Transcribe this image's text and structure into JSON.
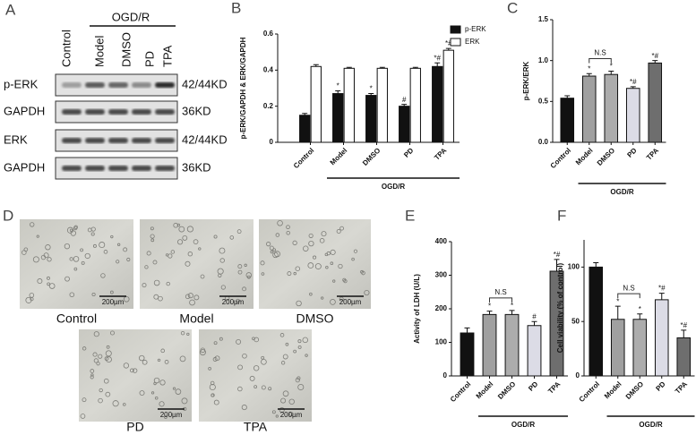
{
  "blot": {
    "panel": "A",
    "group_label": "OGD/R",
    "lanes": [
      "Control",
      "Model",
      "DMSO",
      "PD",
      "TPA"
    ],
    "rows": [
      {
        "label": "p-ERK",
        "size": "42/44KD"
      },
      {
        "label": "GAPDH",
        "size": "36KD"
      },
      {
        "label": "ERK",
        "size": "42/44KD"
      },
      {
        "label": "GAPDH",
        "size": "36KD"
      }
    ]
  },
  "micrographs": {
    "panel": "D",
    "images": [
      {
        "label": "Control",
        "scale": "200µm"
      },
      {
        "label": "Model",
        "scale": "200µm"
      },
      {
        "label": "DMSO",
        "scale": "200µm"
      },
      {
        "label": "PD",
        "scale": "200µm"
      },
      {
        "label": "TPA",
        "scale": "200µm"
      }
    ]
  },
  "chart_data": [
    {
      "type": "bar",
      "panel": "B",
      "y_label": "p-ERK/GAPDH & ERK/GAPDH",
      "group_label": "OGD/R",
      "categories": [
        "Control",
        "Model",
        "DMSO",
        "PD",
        "TPA"
      ],
      "series": [
        {
          "name": "p-ERK",
          "color": "#111111",
          "values": [
            0.15,
            0.27,
            0.26,
            0.2,
            0.42
          ],
          "errors": [
            0.01,
            0.015,
            0.01,
            0.01,
            0.02
          ],
          "annotations": [
            null,
            "*",
            "*",
            "#",
            "*#"
          ]
        },
        {
          "name": "ERK",
          "color": "#ffffff",
          "values": [
            0.42,
            0.41,
            0.41,
            0.41,
            0.51
          ],
          "errors": [
            0.01,
            0.005,
            0.005,
            0.005,
            0.01
          ],
          "annotations": [
            null,
            null,
            null,
            null,
            "*#"
          ]
        }
      ],
      "ylim": [
        0,
        0.6
      ],
      "yticks": [
        0,
        0.2,
        0.4,
        0.6
      ],
      "legend": "top-right"
    },
    {
      "type": "bar",
      "panel": "C",
      "y_label": "p-ERK/ERK",
      "group_label": "OGD/R",
      "bracket_label": "N.S",
      "categories": [
        "Control",
        "Model",
        "DMSO",
        "PD",
        "TPA"
      ],
      "values": [
        0.54,
        0.81,
        0.83,
        0.66,
        0.97
      ],
      "errors": [
        0.03,
        0.03,
        0.04,
        0.02,
        0.03
      ],
      "annotations": [
        null,
        "*",
        "*",
        "*#",
        "*#"
      ],
      "colors": [
        "#111111",
        "#a0a0a0",
        "#acacac",
        "#dcdce6",
        "#6e6e6e"
      ],
      "ylim": [
        0,
        1.5
      ],
      "yticks": [
        {
          "value": 0,
          "label": "0.0"
        },
        0.5,
        {
          "value": 1,
          "label": "1.0"
        },
        1.5
      ]
    },
    {
      "type": "bar",
      "panel": "E",
      "y_label": "Activity of LDH (U/L)",
      "group_label": "OGD/R",
      "bracket_label": "N.S",
      "categories": [
        "Control",
        "Model",
        "DMSO",
        "PD",
        "TPA"
      ],
      "values": [
        128,
        183,
        183,
        150,
        312
      ],
      "errors": [
        15,
        10,
        12,
        12,
        35
      ],
      "annotations": [
        null,
        "*",
        "*",
        "#",
        "*#"
      ],
      "colors": [
        "#111111",
        "#a0a0a0",
        "#acacac",
        "#dcdce6",
        "#6e6e6e"
      ],
      "ylim": [
        0,
        400
      ],
      "yticks": [
        0,
        100,
        200,
        300,
        400
      ]
    },
    {
      "type": "bar",
      "panel": "F",
      "y_label": "Cell viability (% of control)",
      "group_label": "OGD/R",
      "bracket_label": "N.S",
      "categories": [
        "Control",
        "Model",
        "DMSO",
        "PD",
        "TPA"
      ],
      "values": [
        100,
        52,
        52,
        70,
        35
      ],
      "errors": [
        4,
        12,
        5,
        6,
        7
      ],
      "annotations": [
        null,
        "*",
        "*",
        "*#",
        "*#"
      ],
      "colors": [
        "#111111",
        "#a0a0a0",
        "#acacac",
        "#dcdce6",
        "#6e6e6e"
      ],
      "ylim": [
        0,
        125
      ],
      "yticks": [
        0,
        50,
        100
      ]
    }
  ]
}
